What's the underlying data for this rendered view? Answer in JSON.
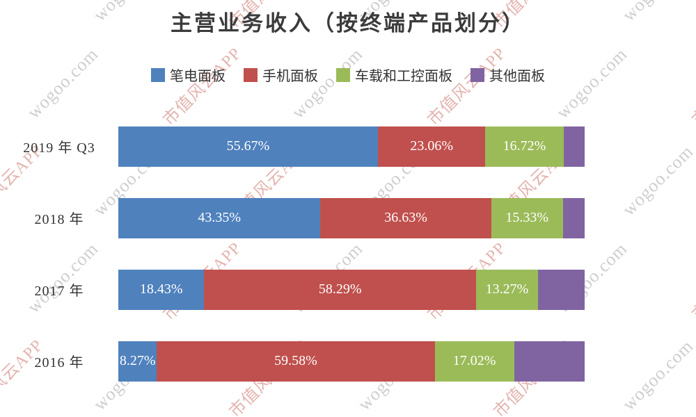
{
  "chart_data": {
    "type": "bar",
    "orientation": "horizontal",
    "stacked": true,
    "title": "主营业务收入（按终端产品划分）",
    "categories": [
      "2019 年 Q3",
      "2018 年",
      "2017 年",
      "2016 年"
    ],
    "series": [
      {
        "name": "笔电面板",
        "color": "#4F81BD",
        "values": [
          55.67,
          43.35,
          18.43,
          8.27
        ],
        "data_labels": [
          "55.67%",
          "43.35%",
          "18.43%",
          "8.27%"
        ]
      },
      {
        "name": "手机面板",
        "color": "#C0504D",
        "values": [
          23.06,
          36.63,
          58.29,
          59.58
        ],
        "data_labels": [
          "23.06%",
          "36.63%",
          "58.29%",
          "59.58%"
        ]
      },
      {
        "name": "车载和工控面板",
        "color": "#9BBB59",
        "values": [
          16.72,
          15.33,
          13.27,
          17.02
        ],
        "data_labels": [
          "16.72%",
          "15.33%",
          "13.27%",
          "17.02%"
        ]
      },
      {
        "name": "其他面板",
        "color": "#8064A2",
        "values": [
          4.55,
          4.69,
          10.01,
          15.13
        ],
        "data_labels": [
          "",
          "",
          "",
          ""
        ]
      }
    ],
    "xlim": [
      0,
      100
    ],
    "value_suffix": "%",
    "legend_position": "top",
    "grid": false
  },
  "watermarks": [
    {
      "text": "市值风云APP",
      "color": "#dfa7a2"
    },
    {
      "text": "wogoo.com",
      "color": "#c6c6c6"
    }
  ]
}
